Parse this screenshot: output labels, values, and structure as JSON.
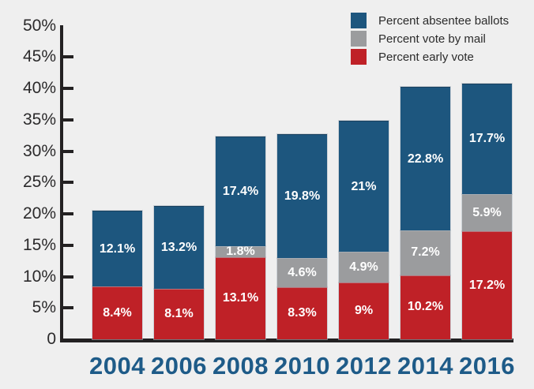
{
  "chart_data": {
    "type": "bar",
    "stacked": true,
    "title": "",
    "xlabel": "",
    "ylabel": "",
    "background": "#efefef",
    "grid": false,
    "categories": [
      "2004",
      "2006",
      "2008",
      "2010",
      "2012",
      "2014",
      "2016"
    ],
    "series": [
      {
        "name": "Percent early vote",
        "color": "#bf2127",
        "values": [
          8.4,
          8.1,
          13.1,
          8.3,
          9,
          10.2,
          17.2
        ],
        "labels": [
          "8.4%",
          "8.1%",
          "13.1%",
          "8.3%",
          "9%",
          "10.2%",
          "17.2%"
        ]
      },
      {
        "name": "Percent vote by mail",
        "color": "#9b9c9e",
        "values": [
          0,
          0,
          1.8,
          4.6,
          4.9,
          7.2,
          5.9
        ],
        "labels": [
          "",
          "",
          "1.8%",
          "4.6%",
          "4.9%",
          "7.2%",
          "5.9%"
        ]
      },
      {
        "name": "Percent absentee ballots",
        "color": "#1d567e",
        "values": [
          12.1,
          13.2,
          17.4,
          19.8,
          21,
          22.8,
          17.7
        ],
        "labels": [
          "12.1%",
          "13.2%",
          "17.4%",
          "19.8%",
          "21%",
          "22.8%",
          "17.7%"
        ]
      }
    ],
    "legend": {
      "position": "top-right",
      "items": [
        {
          "label": "Percent absentee ballots",
          "color": "#1d567e"
        },
        {
          "label": "Percent vote by mail",
          "color": "#9b9c9e"
        },
        {
          "label": "Percent early vote",
          "color": "#bf2127"
        }
      ]
    },
    "y_axis": {
      "min": 0,
      "max": 50,
      "tick_values": [
        50,
        45,
        40,
        35,
        30,
        25,
        20,
        15,
        10,
        5,
        0
      ],
      "tick_labels": [
        "50%",
        "45%",
        "40%",
        "35%",
        "30%",
        "25%",
        "20%",
        "15%",
        "10%",
        "5%",
        "0"
      ]
    },
    "colors": {
      "axis": "#232122",
      "y_tick_label": "#2b2a2b",
      "category_label": "#1e5b88",
      "bar_value_label": "#ffffff",
      "legend_text": "#2b2b2b"
    }
  }
}
